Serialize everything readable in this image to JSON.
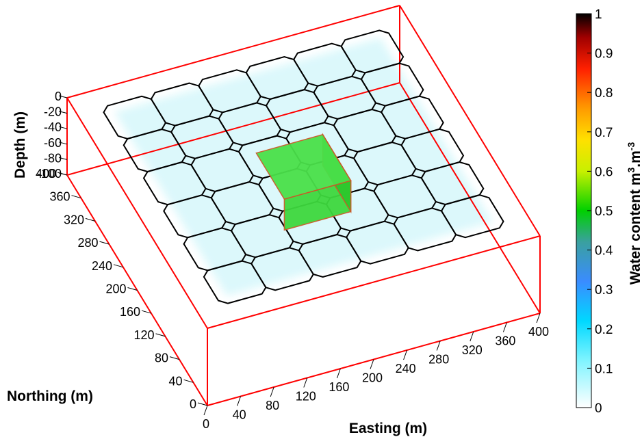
{
  "chart_data": {
    "type": "3d-block-model",
    "xlabel": "Easting (m)",
    "ylabel": "Northing (m)",
    "zlabel": "Depth (m)",
    "colorbar_label": "Water content m<sup>3</sup>.m<sup>-3</sup>",
    "colorbar_label_text": "Water content m",
    "colorbar_label_sup1": "3",
    "colorbar_label_mid": ".m",
    "colorbar_label_sup2": "-3",
    "xlim": [
      0,
      400
    ],
    "ylim": [
      0,
      400
    ],
    "zlim": [
      -100,
      0
    ],
    "x_ticks": [
      "0",
      "40",
      "80",
      "120",
      "160",
      "200",
      "240",
      "280",
      "320",
      "360",
      "400"
    ],
    "y_ticks": [
      "0",
      "40",
      "80",
      "120",
      "160",
      "200",
      "240",
      "280",
      "320",
      "360",
      "400"
    ],
    "z_ticks": [
      "0",
      "-20",
      "-40",
      "-60",
      "-80",
      "-100"
    ],
    "colorbar_ticks": [
      "0",
      "0.1",
      "0.2",
      "0.3",
      "0.4",
      "0.5",
      "0.6",
      "0.7",
      "0.8",
      "0.9",
      "1"
    ],
    "colorbar_range": [
      0,
      1
    ],
    "colormap": [
      "#ffffff",
      "#00e5ff",
      "#3a7bff",
      "#00c800",
      "#ffff00",
      "#ff8c00",
      "#ff0000",
      "#000000"
    ],
    "bounding_box_color": "#ff0000",
    "grid_color": "#000000",
    "grid_cells": 6,
    "background_water_content": 0.05,
    "anomaly": {
      "x_range": [
        160,
        240
      ],
      "y_range": [
        160,
        240
      ],
      "water_content": 0.5,
      "color": "#22d322"
    }
  }
}
